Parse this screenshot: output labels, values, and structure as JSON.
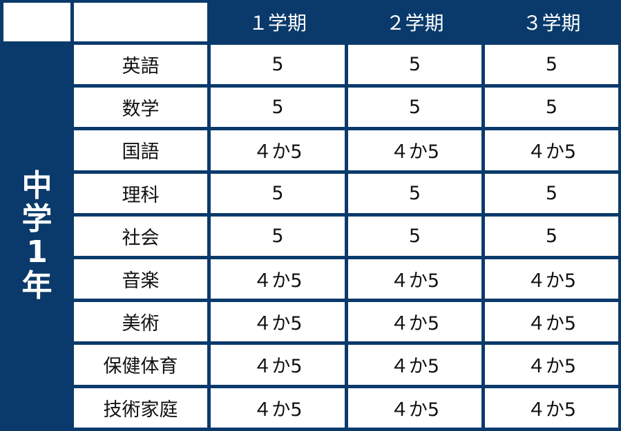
{
  "header": {
    "terms": [
      "１学期",
      "２学期",
      "３学期"
    ]
  },
  "year_label": [
    "中",
    "学",
    "1",
    "年"
  ],
  "rows": [
    {
      "subject": "英語",
      "grades": [
        "5",
        "5",
        "5"
      ]
    },
    {
      "subject": "数学",
      "grades": [
        "5",
        "5",
        "5"
      ]
    },
    {
      "subject": "国語",
      "grades": [
        "４か5",
        "４か5",
        "４か5"
      ]
    },
    {
      "subject": "理科",
      "grades": [
        "5",
        "5",
        "5"
      ]
    },
    {
      "subject": "社会",
      "grades": [
        "5",
        "5",
        "5"
      ]
    },
    {
      "subject": "音楽",
      "grades": [
        "４か5",
        "４か5",
        "４か5"
      ]
    },
    {
      "subject": "美術",
      "grades": [
        "４か5",
        "４か5",
        "４か5"
      ]
    },
    {
      "subject": "保健体育",
      "grades": [
        "４か5",
        "４か5",
        "４か5"
      ]
    },
    {
      "subject": "技術家庭",
      "grades": [
        "４か5",
        "４か5",
        "４か5"
      ]
    }
  ],
  "colors": {
    "navy": "#0a3a6b",
    "cell": "#ffffff"
  }
}
